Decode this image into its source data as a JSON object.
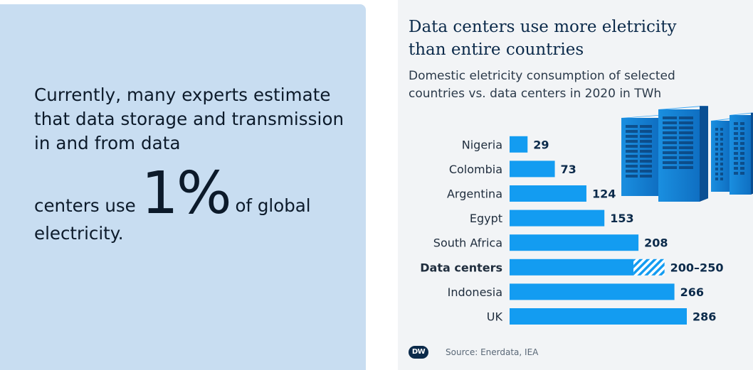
{
  "intro": {
    "text": "Currently, many experts estimate that data storage and transmission in and from data",
    "stat_prefix": "centers use",
    "stat_value": "1%",
    "stat_suffix": "of global",
    "stat_end": "electricity."
  },
  "chart_data": {
    "type": "bar",
    "orientation": "horizontal",
    "title": "Data centers use more eletricity than entire countries",
    "subtitle": "Domestic eletricity consumption of selected countries vs. data centers in 2020 in TWh",
    "categories": [
      "Nigeria",
      "Colombia",
      "Argentina",
      "Egypt",
      "South Africa",
      "Data centers",
      "Indonesia",
      "UK"
    ],
    "values": [
      29,
      73,
      124,
      153,
      208,
      200,
      266,
      286
    ],
    "ranges": [
      null,
      null,
      null,
      null,
      null,
      [
        200,
        250
      ],
      null,
      null
    ],
    "value_labels": [
      "29",
      "73",
      "124",
      "153",
      "208",
      "200–250",
      "266",
      "286"
    ],
    "highlight": "Data centers",
    "bar_color": "#139cf1",
    "xlim": [
      0,
      286
    ],
    "grid": false,
    "legend": "none"
  },
  "source": {
    "logo_text": "DW",
    "text": "Source: Enerdata, IEA"
  }
}
